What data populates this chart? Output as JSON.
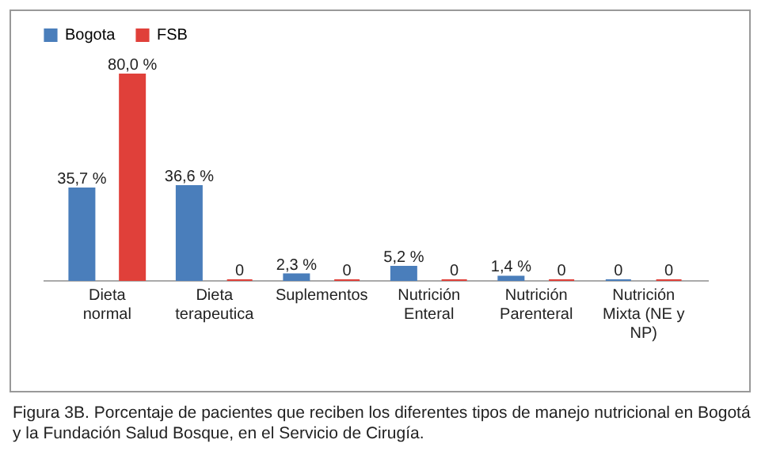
{
  "chart_data": {
    "type": "bar",
    "categories": [
      "Dieta  normal",
      "Dieta terapeutica",
      "Suplementos",
      "Nutrición Enteral",
      "Nutrición Parenteral",
      "Nutrición Mixta (NE y NP)"
    ],
    "series": [
      {
        "name": "Bogota",
        "color": "#4a7ebb",
        "values": [
          35.7,
          36.6,
          2.3,
          5.2,
          1.4,
          0
        ],
        "value_labels": [
          "35,7 %",
          "36,6 %",
          "2,3 %",
          "5,2 %",
          "1,4 %",
          "0"
        ]
      },
      {
        "name": "FSB",
        "color": "#e0403a",
        "values": [
          80.0,
          0,
          0,
          0,
          0,
          0
        ],
        "value_labels": [
          "80,0 %",
          "0",
          "0",
          "0",
          "0",
          "0"
        ]
      }
    ],
    "legend": "top",
    "annotations": [
      "Figura 3B. Porcentaje de pacientes que reciben los diferentes tipos de manejo nutricional en Bogotá y la Fundación Salud Bosque, en el Servicio de Cirugía."
    ]
  }
}
